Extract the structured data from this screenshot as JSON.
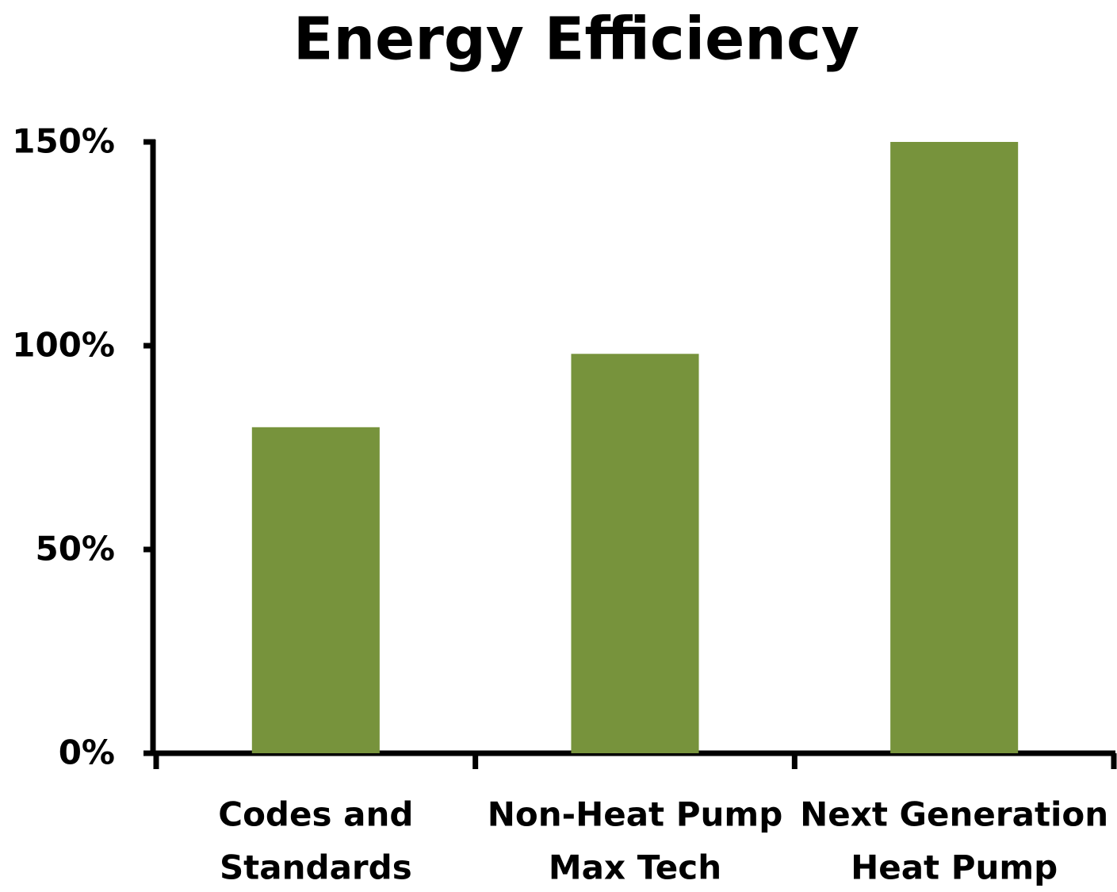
{
  "chart_data": {
    "type": "bar",
    "title": "Energy Efficiency",
    "categories": [
      [
        "Codes and",
        "Standards"
      ],
      [
        "Non-Heat Pump",
        "Max Tech"
      ],
      [
        "Next Generation",
        "Heat Pump"
      ]
    ],
    "values": [
      80,
      98,
      150
    ],
    "color": "#77933c",
    "ylim": [
      0,
      150
    ],
    "yticks": [
      {
        "value": 0,
        "label": "0%"
      },
      {
        "value": 50,
        "label": "50%"
      },
      {
        "value": 100,
        "label": "100%"
      },
      {
        "value": 150,
        "label": "150%"
      }
    ],
    "grid": false
  }
}
